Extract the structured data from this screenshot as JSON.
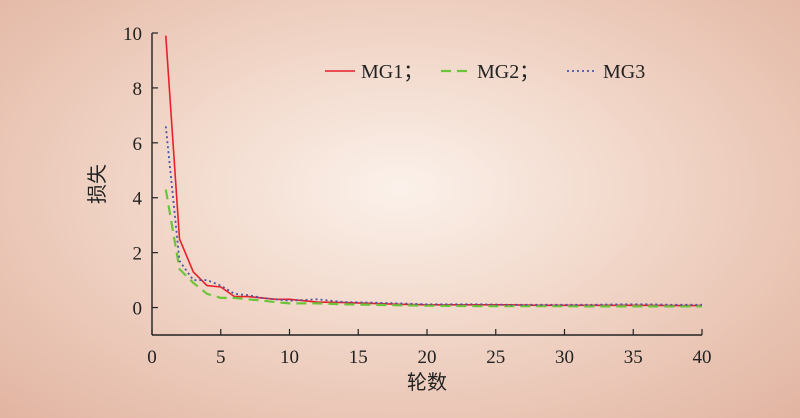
{
  "chart_data": {
    "type": "line",
    "xlabel": "轮数",
    "ylabel": "损失",
    "xlim": [
      0,
      40
    ],
    "ylim": [
      -1,
      10
    ],
    "xticks": [
      0,
      5,
      10,
      15,
      20,
      25,
      30,
      35,
      40
    ],
    "yticks": [
      0,
      2,
      4,
      6,
      8,
      10
    ],
    "grid": false,
    "legend": {
      "placement": "top-right",
      "entries": [
        "MG1；",
        "MG2；",
        "MG3"
      ]
    },
    "series": [
      {
        "name": "MG1",
        "color": "#e8202a",
        "dash": "solid",
        "x": [
          1,
          2,
          3,
          4,
          5,
          6,
          7,
          8,
          9,
          10,
          12,
          14,
          16,
          18,
          20,
          22,
          24,
          26,
          28,
          30,
          32,
          34,
          36,
          38,
          40
        ],
        "y": [
          9.9,
          2.5,
          1.3,
          0.8,
          0.75,
          0.4,
          0.4,
          0.35,
          0.3,
          0.3,
          0.2,
          0.18,
          0.15,
          0.12,
          0.1,
          0.1,
          0.1,
          0.1,
          0.08,
          0.08,
          0.08,
          0.08,
          0.08,
          0.07,
          0.07
        ]
      },
      {
        "name": "MG2",
        "color": "#6cc43a",
        "dash": "dashed",
        "x": [
          1,
          2,
          3,
          4,
          5,
          6,
          7,
          8,
          9,
          10,
          12,
          14,
          16,
          18,
          20,
          22,
          24,
          26,
          28,
          30,
          32,
          34,
          36,
          38,
          40
        ],
        "y": [
          4.3,
          1.4,
          0.9,
          0.5,
          0.35,
          0.35,
          0.3,
          0.25,
          0.2,
          0.15,
          0.15,
          0.12,
          0.1,
          0.08,
          0.07,
          0.06,
          0.05,
          0.05,
          0.05,
          0.05,
          0.04,
          0.04,
          0.04,
          0.04,
          0.04
        ]
      },
      {
        "name": "MG3",
        "color": "#4a55a8",
        "dash": "dotted",
        "x": [
          1,
          2,
          3,
          4,
          5,
          6,
          7,
          8,
          9,
          10,
          12,
          14,
          16,
          18,
          20,
          22,
          24,
          26,
          28,
          30,
          32,
          34,
          36,
          38,
          40
        ],
        "y": [
          6.6,
          1.7,
          1.0,
          1.0,
          0.8,
          0.5,
          0.45,
          0.35,
          0.3,
          0.25,
          0.3,
          0.2,
          0.18,
          0.15,
          0.12,
          0.12,
          0.12,
          0.1,
          0.1,
          0.1,
          0.1,
          0.12,
          0.12,
          0.1,
          0.1
        ]
      }
    ]
  }
}
